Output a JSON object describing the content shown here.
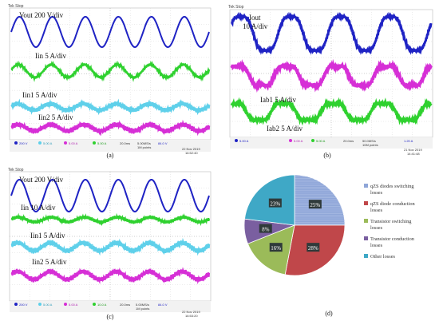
{
  "panel_a": {
    "caption": "(a)",
    "header": "Tek Stop",
    "traces": [
      {
        "label": "Vout 200 V/div",
        "color": "#1f23c4"
      },
      {
        "label": "Iin 5 A/div",
        "color": "#2fd12f"
      },
      {
        "label": "Iin1 5 A/div",
        "color": "#5fd0ea"
      },
      {
        "label": "Iin2 5 A/div",
        "color": "#d62fd6"
      }
    ],
    "footer": {
      "ch1": "200 V",
      "ch2": "5.00 A",
      "ch3": "5.00 A",
      "ch4": "5.00 A",
      "time": "20.0ms",
      "rate": "5.00MS/s",
      "points": "1M points",
      "trig": "84.0 V",
      "date": "22 Nov 2019",
      "clock": "16:52:40"
    }
  },
  "panel_b": {
    "caption": "(b)",
    "header": "Tek Stop",
    "traces": [
      {
        "label": "Iout",
        "color": "#1f23c4"
      },
      {
        "label": "10  A/div",
        "color": "#1f23c4"
      },
      {
        "label": "Iab1 5 A/div",
        "color": "#d62fd6"
      },
      {
        "label": "Iab2 5 A/div",
        "color": "#2fd12f"
      }
    ],
    "footer": {
      "ch1": "5.00 A",
      "ch2": "5.00 A",
      "ch3": "5.00 A",
      "time": "20.0ms",
      "rate": "50.0MS/s",
      "points": "10M points",
      "trig": "1.20 A",
      "date": "21 Nov 2019",
      "clock": "14:41:48"
    }
  },
  "panel_c": {
    "caption": "(c)",
    "header": "Tek Stop",
    "traces": [
      {
        "label": "Vout 200 V/div",
        "color": "#1f23c4"
      },
      {
        "label": "Iin 10 A/div",
        "color": "#2fd12f"
      },
      {
        "label": "Iin1 5 A/div",
        "color": "#5fd0ea"
      },
      {
        "label": "Iin2 5 A/div",
        "color": "#d62fd6"
      }
    ],
    "footer": {
      "ch1": "200 V",
      "ch2": "5.00 A",
      "ch3": "5.00 A",
      "ch4": "10.0 A",
      "time": "20.0ms",
      "rate": "5.00MS/s",
      "points": "1M points",
      "trig": "84.0 V",
      "date": "22 Nov 2019",
      "clock": "16:53:20"
    }
  },
  "panel_d": {
    "caption": "(d)",
    "chart_data": {
      "type": "pie",
      "slices": [
        {
          "name": "qZS diodes switching losses",
          "value": 25,
          "label": "25%",
          "color": "#8fa6d8"
        },
        {
          "name": "qZS diode conduction losses",
          "value": 28,
          "label": "28%",
          "color": "#c0474a"
        },
        {
          "name": "Transistor switching losses",
          "value": 16,
          "label": "16%",
          "color": "#9bbb59"
        },
        {
          "name": "Transistor conduction losses",
          "value": 8,
          "label": "8%",
          "color": "#7a5fa0"
        },
        {
          "name": "Other losses",
          "value": 23,
          "label": "23%",
          "color": "#3fa8c6"
        }
      ],
      "legend_position": "right",
      "legend": [
        [
          "qZS diodes switching",
          "losses"
        ],
        [
          "qZS diode conduction",
          "losses"
        ],
        [
          "Transistor switching",
          "losses"
        ],
        [
          "Transistor conduction",
          "losses"
        ],
        [
          "Other losses"
        ]
      ]
    }
  }
}
